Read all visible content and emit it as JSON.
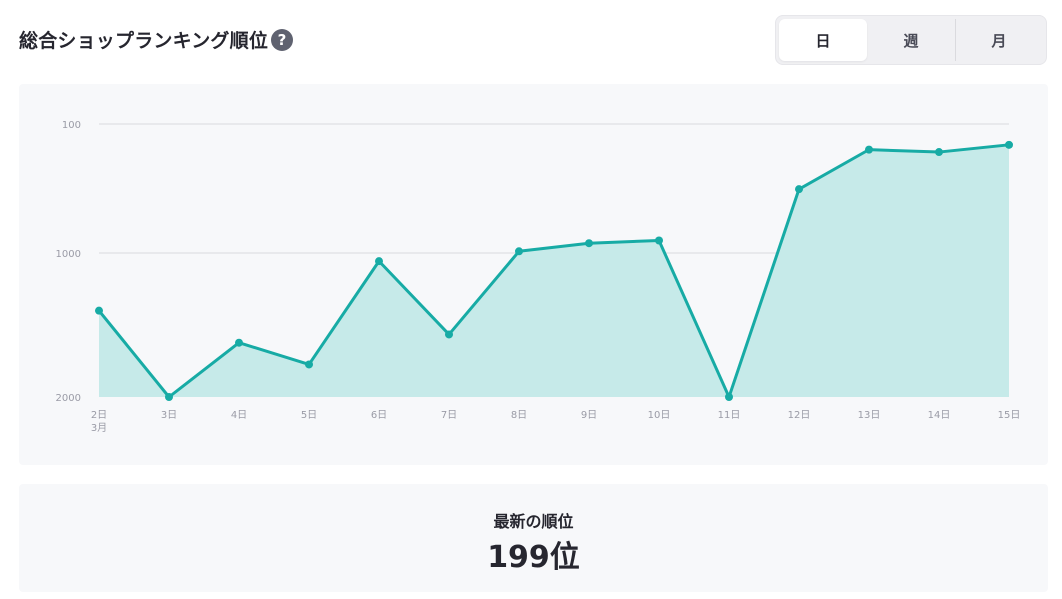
{
  "header": {
    "title": "総合ショップランキング順位",
    "help_icon": "?",
    "tabs": [
      {
        "label": "日",
        "active": true
      },
      {
        "label": "週",
        "active": false
      },
      {
        "label": "月",
        "active": false
      }
    ]
  },
  "colors": {
    "line": "#17aba5",
    "fill": "#c6eae9",
    "grid": "#d9dadf",
    "panel": "#f7f8fa"
  },
  "chart_data": {
    "type": "area",
    "title": "",
    "xlabel": "",
    "ylabel": "",
    "y_scale": "log",
    "y_inverted": true,
    "ylim": [
      100,
      2000
    ],
    "y_ticks": [
      {
        "value": 100,
        "label": "100"
      },
      {
        "value": 1000,
        "label": "1000"
      },
      {
        "value": 2000,
        "label": "2000"
      }
    ],
    "categories": [
      "2日",
      "3日",
      "4日",
      "5日",
      "6日",
      "7日",
      "8日",
      "9日",
      "10日",
      "11日",
      "12日",
      "13日",
      "14日",
      "15日"
    ],
    "category_sublabels": [
      "3月",
      "",
      "",
      "",
      "",
      "",
      "",
      "",
      "",
      "",
      "",
      "",
      "",
      ""
    ],
    "series": [
      {
        "values": [
          1320,
          2900,
          1540,
          1710,
          1040,
          1480,
          970,
          840,
          800,
          3500,
          320,
          158,
          165,
          145
        ]
      }
    ],
    "grid": true,
    "legend": "none"
  },
  "latest": {
    "label": "最新の順位",
    "value": "199位"
  }
}
